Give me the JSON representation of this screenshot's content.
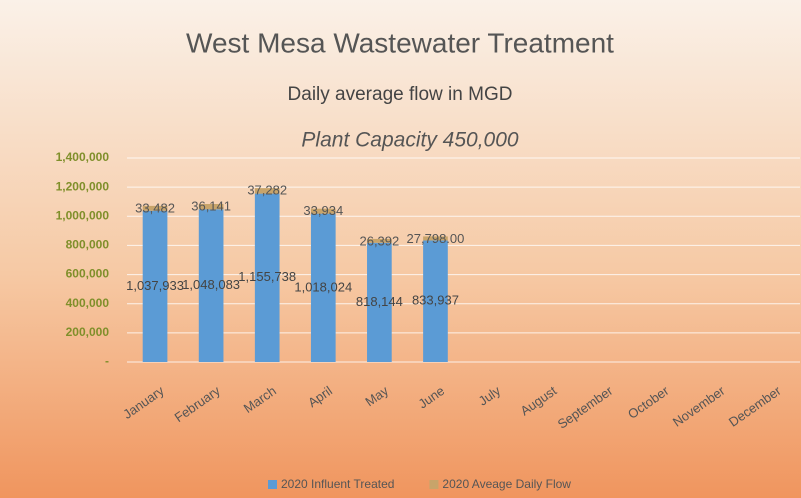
{
  "chart_data": {
    "type": "stacked_bar",
    "title": "West Mesa Wastewater Treatment",
    "subtitle": "Daily average flow in MGD",
    "annotation": "Plant Capacity 450,000",
    "categories": [
      "January",
      "February",
      "March",
      "April",
      "May",
      "June",
      "July",
      "August",
      "September",
      "October",
      "November",
      "December"
    ],
    "series": [
      {
        "name": "2020 Influent Treated",
        "color": "#5b9bd5",
        "values": [
          1037933,
          1048083,
          1155738,
          1018024,
          818144,
          833937,
          null,
          null,
          null,
          null,
          null,
          null
        ],
        "value_labels": [
          "1,037,933",
          "1,048,083",
          "1,155,738",
          "1,018,024",
          "818,144",
          "833,937",
          null,
          null,
          null,
          null,
          null,
          null
        ]
      },
      {
        "name": "2020 Aveage Daily Flow",
        "color": "#c8a46a",
        "values": [
          33482,
          36141,
          37282,
          33934,
          26392,
          27798,
          null,
          null,
          null,
          null,
          null,
          null
        ],
        "value_labels": [
          "33,482",
          "36,141",
          "37,282",
          "33,934",
          "26,392",
          "27,798.00",
          null,
          null,
          null,
          null,
          null,
          null
        ]
      }
    ],
    "ylim": [
      0,
      1400000
    ],
    "yticks": [
      {
        "value": 0,
        "label": "-"
      },
      {
        "value": 200000,
        "label": "200,000"
      },
      {
        "value": 400000,
        "label": "400,000"
      },
      {
        "value": 600000,
        "label": "600,000"
      },
      {
        "value": 800000,
        "label": "800,000"
      },
      {
        "value": 1000000,
        "label": "1,000,000"
      },
      {
        "value": 1200000,
        "label": "1,200,000"
      },
      {
        "value": 1400000,
        "label": "1,400,000"
      }
    ],
    "grid": true,
    "legend": "bottom"
  }
}
